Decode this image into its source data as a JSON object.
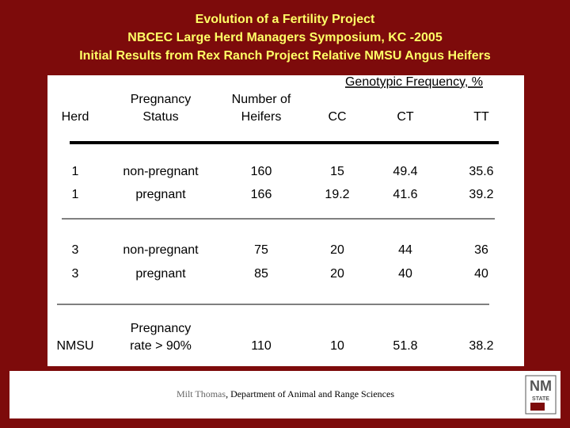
{
  "header": {
    "lines": [
      "Evolution of a Fertility Project",
      "NBCEC Large Herd Managers Symposium, KC -2005",
      "Initial Results from Rex Ranch Project Relative NMSU Angus Heifers"
    ]
  },
  "table": {
    "group_header": "Genotypic Frequency, %",
    "columns": [
      [
        "Herd"
      ],
      [
        "Pregnancy",
        "Status"
      ],
      [
        "Number of",
        "Heifers"
      ],
      [
        "CC"
      ],
      [
        "CT"
      ],
      [
        "TT"
      ]
    ],
    "rows": [
      [
        [
          "1"
        ],
        [
          "non-pregnant"
        ],
        [
          "160"
        ],
        [
          "15"
        ],
        [
          "49.4"
        ],
        [
          "35.6"
        ]
      ],
      [
        [
          "1"
        ],
        [
          "pregnant"
        ],
        [
          "166"
        ],
        [
          "19.2"
        ],
        [
          "41.6"
        ],
        [
          "39.2"
        ]
      ],
      [
        [
          "3"
        ],
        [
          "non-pregnant"
        ],
        [
          "75"
        ],
        [
          "20"
        ],
        [
          "44"
        ],
        [
          "36"
        ]
      ],
      [
        [
          "3"
        ],
        [
          "pregnant"
        ],
        [
          "85"
        ],
        [
          "20"
        ],
        [
          "40"
        ],
        [
          "40"
        ]
      ],
      [
        [
          "NMSU"
        ],
        [
          "Pregnancy",
          "rate > 90%"
        ],
        [
          "110"
        ],
        [
          "10"
        ],
        [
          "51.8"
        ],
        [
          "38.2"
        ]
      ]
    ]
  },
  "footer": {
    "author": "Milt Thomas",
    "affiliation": ", Department of Animal and Range Sciences",
    "logo": [
      "NM",
      "STATE"
    ]
  }
}
